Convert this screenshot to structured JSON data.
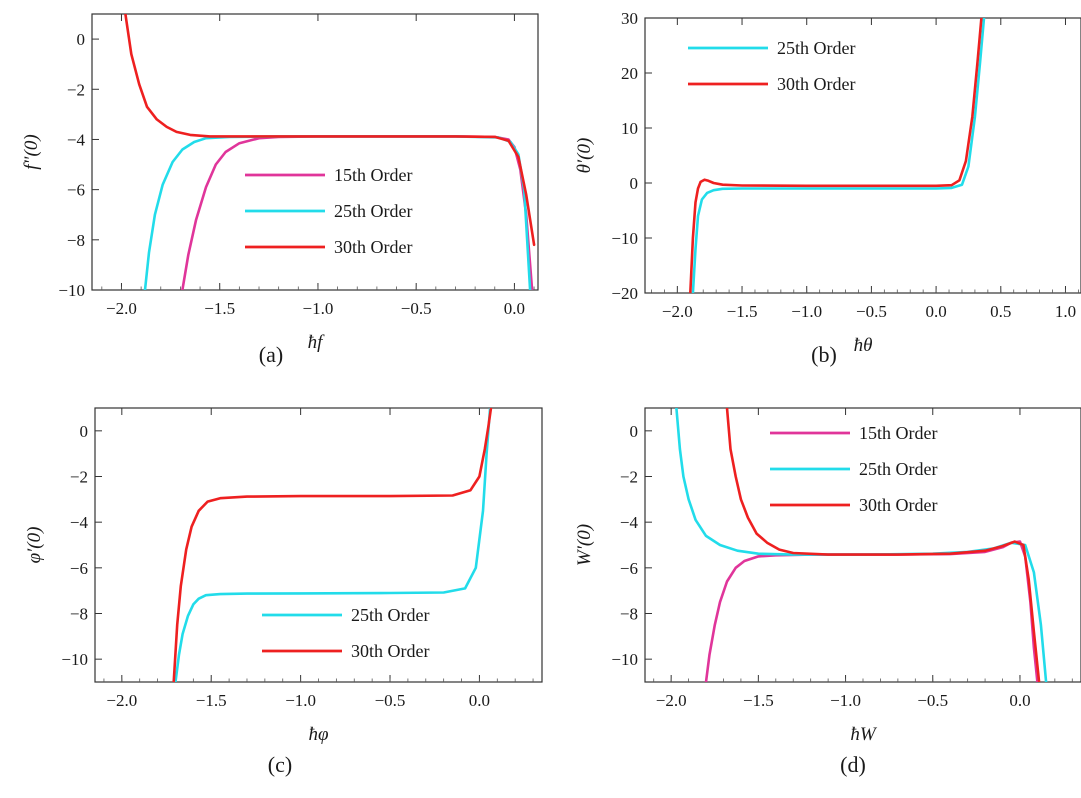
{
  "chart_data": [
    {
      "panel": "a",
      "caption": "(a)",
      "type": "line",
      "xlabel": "ħf",
      "ylabel": "f\"(0)",
      "xlim": [
        -2.15,
        0.12
      ],
      "ylim": [
        -10,
        1
      ],
      "xticks": [
        -2.0,
        -1.5,
        -1.0,
        -0.5,
        0.0
      ],
      "xtick_labels": [
        "−2.0",
        "−1.5",
        "−1.0",
        "−0.5",
        "0.0"
      ],
      "yticks": [
        0,
        -2,
        -4,
        -6,
        -8,
        -10
      ],
      "ytick_labels": [
        "0",
        "−2",
        "−4",
        "−6",
        "−8",
        "−10"
      ],
      "legend_position": "center-right",
      "series": [
        {
          "name": "15th Order",
          "color": "#e0359a",
          "x": [
            -1.69,
            -1.66,
            -1.62,
            -1.57,
            -1.52,
            -1.47,
            -1.4,
            -1.3,
            -1.2,
            -1.0,
            -0.6,
            -0.3,
            -0.1,
            -0.03,
            0.0,
            0.03,
            0.06,
            0.09
          ],
          "y": [
            -10,
            -8.6,
            -7.2,
            -5.9,
            -5.0,
            -4.5,
            -4.15,
            -3.95,
            -3.9,
            -3.88,
            -3.88,
            -3.88,
            -3.9,
            -4.0,
            -4.3,
            -5.2,
            -7.0,
            -10
          ]
        },
        {
          "name": "25th Order",
          "color": "#22dcea",
          "x": [
            -1.88,
            -1.86,
            -1.83,
            -1.79,
            -1.74,
            -1.69,
            -1.63,
            -1.57,
            -1.45,
            -1.2,
            -0.8,
            -0.3,
            -0.08,
            -0.02,
            0.02,
            0.05,
            0.08
          ],
          "y": [
            -10,
            -8.5,
            -7.0,
            -5.8,
            -4.9,
            -4.4,
            -4.1,
            -3.95,
            -3.9,
            -3.88,
            -3.88,
            -3.88,
            -3.92,
            -4.1,
            -4.6,
            -6.0,
            -10
          ]
        },
        {
          "name": "30th Order",
          "color": "#ee2020",
          "x": [
            -1.98,
            -1.95,
            -1.91,
            -1.87,
            -1.82,
            -1.77,
            -1.72,
            -1.65,
            -1.55,
            -1.3,
            -0.8,
            -0.3,
            -0.1,
            -0.03,
            0.02,
            0.06,
            0.1
          ],
          "y": [
            1,
            -0.6,
            -1.8,
            -2.7,
            -3.2,
            -3.5,
            -3.7,
            -3.82,
            -3.88,
            -3.88,
            -3.88,
            -3.88,
            -3.9,
            -4.05,
            -4.7,
            -6.2,
            -8.2
          ]
        }
      ]
    },
    {
      "panel": "b",
      "caption": "(b)",
      "type": "line",
      "xlabel": "ħθ",
      "ylabel": "θ′(0)",
      "xlim": [
        -2.25,
        1.12
      ],
      "ylim": [
        -20,
        30
      ],
      "xticks": [
        -2.0,
        -1.5,
        -1.0,
        -0.5,
        0.0,
        0.5,
        1.0
      ],
      "xtick_labels": [
        "−2.0",
        "−1.5",
        "−1.0",
        "−0.5",
        "0.0",
        "0.5",
        "1.0"
      ],
      "yticks": [
        30,
        20,
        10,
        0,
        -10,
        -20
      ],
      "ytick_labels": [
        "30",
        "20",
        "10",
        "0",
        "−10",
        "−20"
      ],
      "legend_position": "top-left",
      "series": [
        {
          "name": "25th Order",
          "color": "#22dcea",
          "x": [
            -1.88,
            -1.86,
            -1.84,
            -1.81,
            -1.77,
            -1.72,
            -1.65,
            -1.5,
            -1.0,
            -0.5,
            0.0,
            0.12,
            0.2,
            0.25,
            0.3,
            0.34,
            0.37
          ],
          "y": [
            -20,
            -12,
            -6,
            -3,
            -1.8,
            -1.3,
            -1.05,
            -1.0,
            -1.0,
            -1.0,
            -1.0,
            -0.9,
            -0.3,
            3,
            12,
            22,
            30
          ]
        },
        {
          "name": "30th Order",
          "color": "#ee2020",
          "x": [
            -1.9,
            -1.88,
            -1.86,
            -1.84,
            -1.82,
            -1.79,
            -1.76,
            -1.72,
            -1.65,
            -1.5,
            -1.0,
            -0.5,
            0.0,
            0.12,
            0.18,
            0.23,
            0.28,
            0.32,
            0.35
          ],
          "y": [
            -20,
            -10,
            -3.5,
            -1.0,
            0.2,
            0.6,
            0.4,
            0.0,
            -0.3,
            -0.45,
            -0.5,
            -0.5,
            -0.5,
            -0.4,
            0.5,
            4,
            12,
            22,
            30
          ]
        }
      ]
    },
    {
      "panel": "c",
      "caption": "(c)",
      "type": "line",
      "xlabel": "ħφ",
      "ylabel": "φ′(0)",
      "xlim": [
        -2.15,
        0.35
      ],
      "ylim": [
        -11,
        1
      ],
      "xticks": [
        -2.0,
        -1.5,
        -1.0,
        -0.5,
        0.0
      ],
      "xtick_labels": [
        "−2.0",
        "−1.5",
        "−1.0",
        "−0.5",
        "0.0"
      ],
      "yticks": [
        0,
        -2,
        -4,
        -6,
        -8,
        -10
      ],
      "ytick_labels": [
        "0",
        "−2",
        "−4",
        "−6",
        "−8",
        "−10"
      ],
      "legend_position": "bottom-right",
      "series": [
        {
          "name": "25th Order",
          "color": "#22dcea",
          "x": [
            -1.7,
            -1.68,
            -1.66,
            -1.63,
            -1.6,
            -1.57,
            -1.53,
            -1.45,
            -1.3,
            -1.0,
            -0.5,
            -0.2,
            -0.08,
            -0.02,
            0.02,
            0.04,
            0.06
          ],
          "y": [
            -11,
            -9.8,
            -8.9,
            -8.1,
            -7.6,
            -7.35,
            -7.2,
            -7.15,
            -7.13,
            -7.12,
            -7.1,
            -7.08,
            -6.9,
            -6.0,
            -3.5,
            -1.0,
            1
          ]
        },
        {
          "name": "30th Order",
          "color": "#ee2020",
          "x": [
            -1.71,
            -1.69,
            -1.67,
            -1.64,
            -1.61,
            -1.57,
            -1.52,
            -1.45,
            -1.3,
            -1.0,
            -0.5,
            -0.15,
            -0.05,
            0.0,
            0.03,
            0.05,
            0.065
          ],
          "y": [
            -11,
            -8.5,
            -6.8,
            -5.2,
            -4.2,
            -3.5,
            -3.1,
            -2.95,
            -2.88,
            -2.86,
            -2.86,
            -2.83,
            -2.6,
            -2.0,
            -0.8,
            0.2,
            1
          ]
        }
      ]
    },
    {
      "panel": "d",
      "caption": "(d)",
      "type": "line",
      "xlabel": "ħW",
      "ylabel": "W′(0)",
      "xlim": [
        -2.15,
        0.35
      ],
      "ylim": [
        -11,
        1
      ],
      "xticks": [
        -2.0,
        -1.5,
        -1.0,
        -0.5,
        0.0
      ],
      "xtick_labels": [
        "−2.0",
        "−1.5",
        "−1.0",
        "−0.5",
        "0.0"
      ],
      "yticks": [
        0,
        -2,
        -4,
        -6,
        -8,
        -10
      ],
      "ytick_labels": [
        "0",
        "−2",
        "−4",
        "−6",
        "−8",
        "−10"
      ],
      "legend_position": "top-right",
      "series": [
        {
          "name": "15th Order",
          "color": "#e0359a",
          "x": [
            -1.8,
            -1.78,
            -1.75,
            -1.72,
            -1.68,
            -1.63,
            -1.58,
            -1.5,
            -1.4,
            -1.2,
            -0.8,
            -0.4,
            -0.2,
            -0.1,
            -0.05,
            0.0,
            0.03,
            0.06,
            0.08,
            0.1
          ],
          "y": [
            -11,
            -9.8,
            -8.5,
            -7.5,
            -6.6,
            -6.0,
            -5.7,
            -5.5,
            -5.45,
            -5.42,
            -5.42,
            -5.4,
            -5.3,
            -5.1,
            -4.9,
            -4.85,
            -5.5,
            -7.5,
            -9.5,
            -11
          ]
        },
        {
          "name": "25th Order",
          "color": "#22dcea",
          "x": [
            -1.97,
            -1.95,
            -1.93,
            -1.9,
            -1.86,
            -1.8,
            -1.72,
            -1.62,
            -1.5,
            -1.3,
            -0.9,
            -0.5,
            -0.3,
            -0.15,
            -0.05,
            0.03,
            0.08,
            0.12,
            0.15
          ],
          "y": [
            1,
            -0.8,
            -2.0,
            -3.0,
            -3.9,
            -4.6,
            -5.0,
            -5.25,
            -5.38,
            -5.42,
            -5.42,
            -5.38,
            -5.3,
            -5.15,
            -4.9,
            -5.0,
            -6.2,
            -8.5,
            -11
          ]
        },
        {
          "name": "30th Order",
          "color": "#ee2020",
          "x": [
            -1.68,
            -1.66,
            -1.63,
            -1.6,
            -1.56,
            -1.51,
            -1.45,
            -1.38,
            -1.3,
            -1.1,
            -0.7,
            -0.4,
            -0.2,
            -0.1,
            -0.03,
            0.02,
            0.05,
            0.08,
            0.11
          ],
          "y": [
            1,
            -0.8,
            -2.0,
            -3.0,
            -3.8,
            -4.5,
            -4.9,
            -5.2,
            -5.35,
            -5.42,
            -5.42,
            -5.38,
            -5.25,
            -5.05,
            -4.85,
            -5.0,
            -6.5,
            -8.8,
            -11
          ]
        }
      ]
    }
  ]
}
